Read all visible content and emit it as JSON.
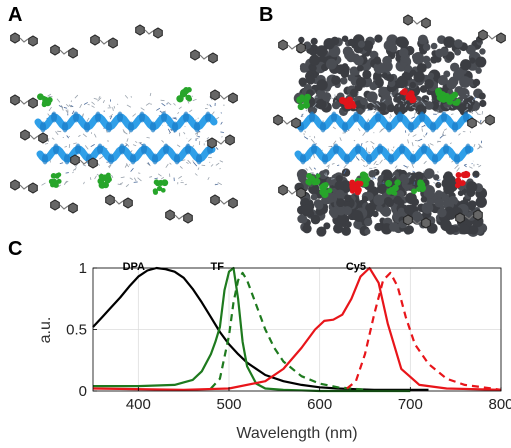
{
  "panels": {
    "a": {
      "letter": "A"
    },
    "b": {
      "letter": "B"
    },
    "c": {
      "letter": "C"
    }
  },
  "icons": {
    "peptide": "green-molecule",
    "dye": "red-molecule",
    "dpa": "grey-hexagon-pair",
    "protein": "dark-grey-protein-cluster",
    "helix": "blue-ribbon-helix",
    "lipid": "lipid-chain-mesh"
  },
  "colors": {
    "helix": "#2f9fe8",
    "peptide": "#27a52a",
    "dye": "#e0141a",
    "dpa": "#555555",
    "protein": "#3b3d42",
    "lipid": "#9aa3ad"
  },
  "chart_data": {
    "type": "line",
    "xlabel": "Wavelength (nm)",
    "ylabel": "a.u.",
    "xlim": [
      350,
      800
    ],
    "ylim": [
      0,
      1
    ],
    "xticks": [
      400,
      500,
      600,
      700,
      800
    ],
    "yticks": [
      0,
      0.5,
      1
    ],
    "ytick_labels": [
      "0",
      "0.5",
      "1"
    ],
    "grid": true,
    "annotations": [
      {
        "text": "DPA",
        "x": 395,
        "y": 1.0
      },
      {
        "text": "TF",
        "x": 487,
        "y": 1.0
      },
      {
        "text": "Cy5",
        "x": 640,
        "y": 1.0
      }
    ],
    "series": [
      {
        "color": "#000000",
        "dash": "solid",
        "x": [
          350,
          360,
          370,
          380,
          390,
          400,
          410,
          420,
          430,
          440,
          450,
          460,
          470,
          480,
          490,
          500,
          510,
          520,
          540,
          560,
          580,
          600,
          620,
          640,
          660,
          680,
          700,
          720
        ],
        "y": [
          0.52,
          0.6,
          0.68,
          0.76,
          0.85,
          0.93,
          0.98,
          1.0,
          0.99,
          0.97,
          0.92,
          0.83,
          0.72,
          0.6,
          0.48,
          0.38,
          0.3,
          0.23,
          0.13,
          0.08,
          0.05,
          0.03,
          0.02,
          0.015,
          0.01,
          0.01,
          0.01,
          0.01
        ]
      },
      {
        "color": "#1e7a1e",
        "dash": "solid",
        "x": [
          350,
          400,
          440,
          460,
          470,
          480,
          485,
          490,
          495,
          500,
          505,
          510,
          515,
          520,
          530,
          540,
          560,
          600,
          700
        ],
        "y": [
          0.04,
          0.04,
          0.05,
          0.09,
          0.16,
          0.3,
          0.4,
          0.52,
          0.82,
          0.97,
          1.0,
          0.75,
          0.4,
          0.2,
          0.06,
          0.02,
          0.01,
          0.0,
          0.0
        ]
      },
      {
        "color": "#1e7a1e",
        "dash": "dashed",
        "x": [
          480,
          490,
          500,
          505,
          510,
          515,
          520,
          530,
          540,
          550,
          560,
          580,
          600,
          620,
          650
        ],
        "y": [
          0.02,
          0.1,
          0.45,
          0.72,
          0.9,
          0.96,
          0.9,
          0.7,
          0.5,
          0.35,
          0.24,
          0.12,
          0.06,
          0.03,
          0.01
        ]
      },
      {
        "color": "#e8151a",
        "dash": "solid",
        "x": [
          350,
          450,
          500,
          540,
          560,
          580,
          595,
          605,
          615,
          625,
          635,
          645,
          655,
          665,
          675,
          690,
          710,
          740,
          800
        ],
        "y": [
          0.02,
          0.01,
          0.02,
          0.08,
          0.18,
          0.35,
          0.5,
          0.57,
          0.58,
          0.62,
          0.75,
          0.93,
          1.0,
          0.88,
          0.55,
          0.18,
          0.05,
          0.02,
          0.01
        ]
      },
      {
        "color": "#e8151a",
        "dash": "dashed",
        "x": [
          630,
          640,
          650,
          660,
          670,
          678,
          686,
          695,
          705,
          720,
          740,
          760,
          790,
          800
        ],
        "y": [
          0.02,
          0.08,
          0.3,
          0.62,
          0.9,
          0.96,
          0.85,
          0.6,
          0.38,
          0.22,
          0.1,
          0.05,
          0.02,
          0.01
        ]
      }
    ]
  }
}
